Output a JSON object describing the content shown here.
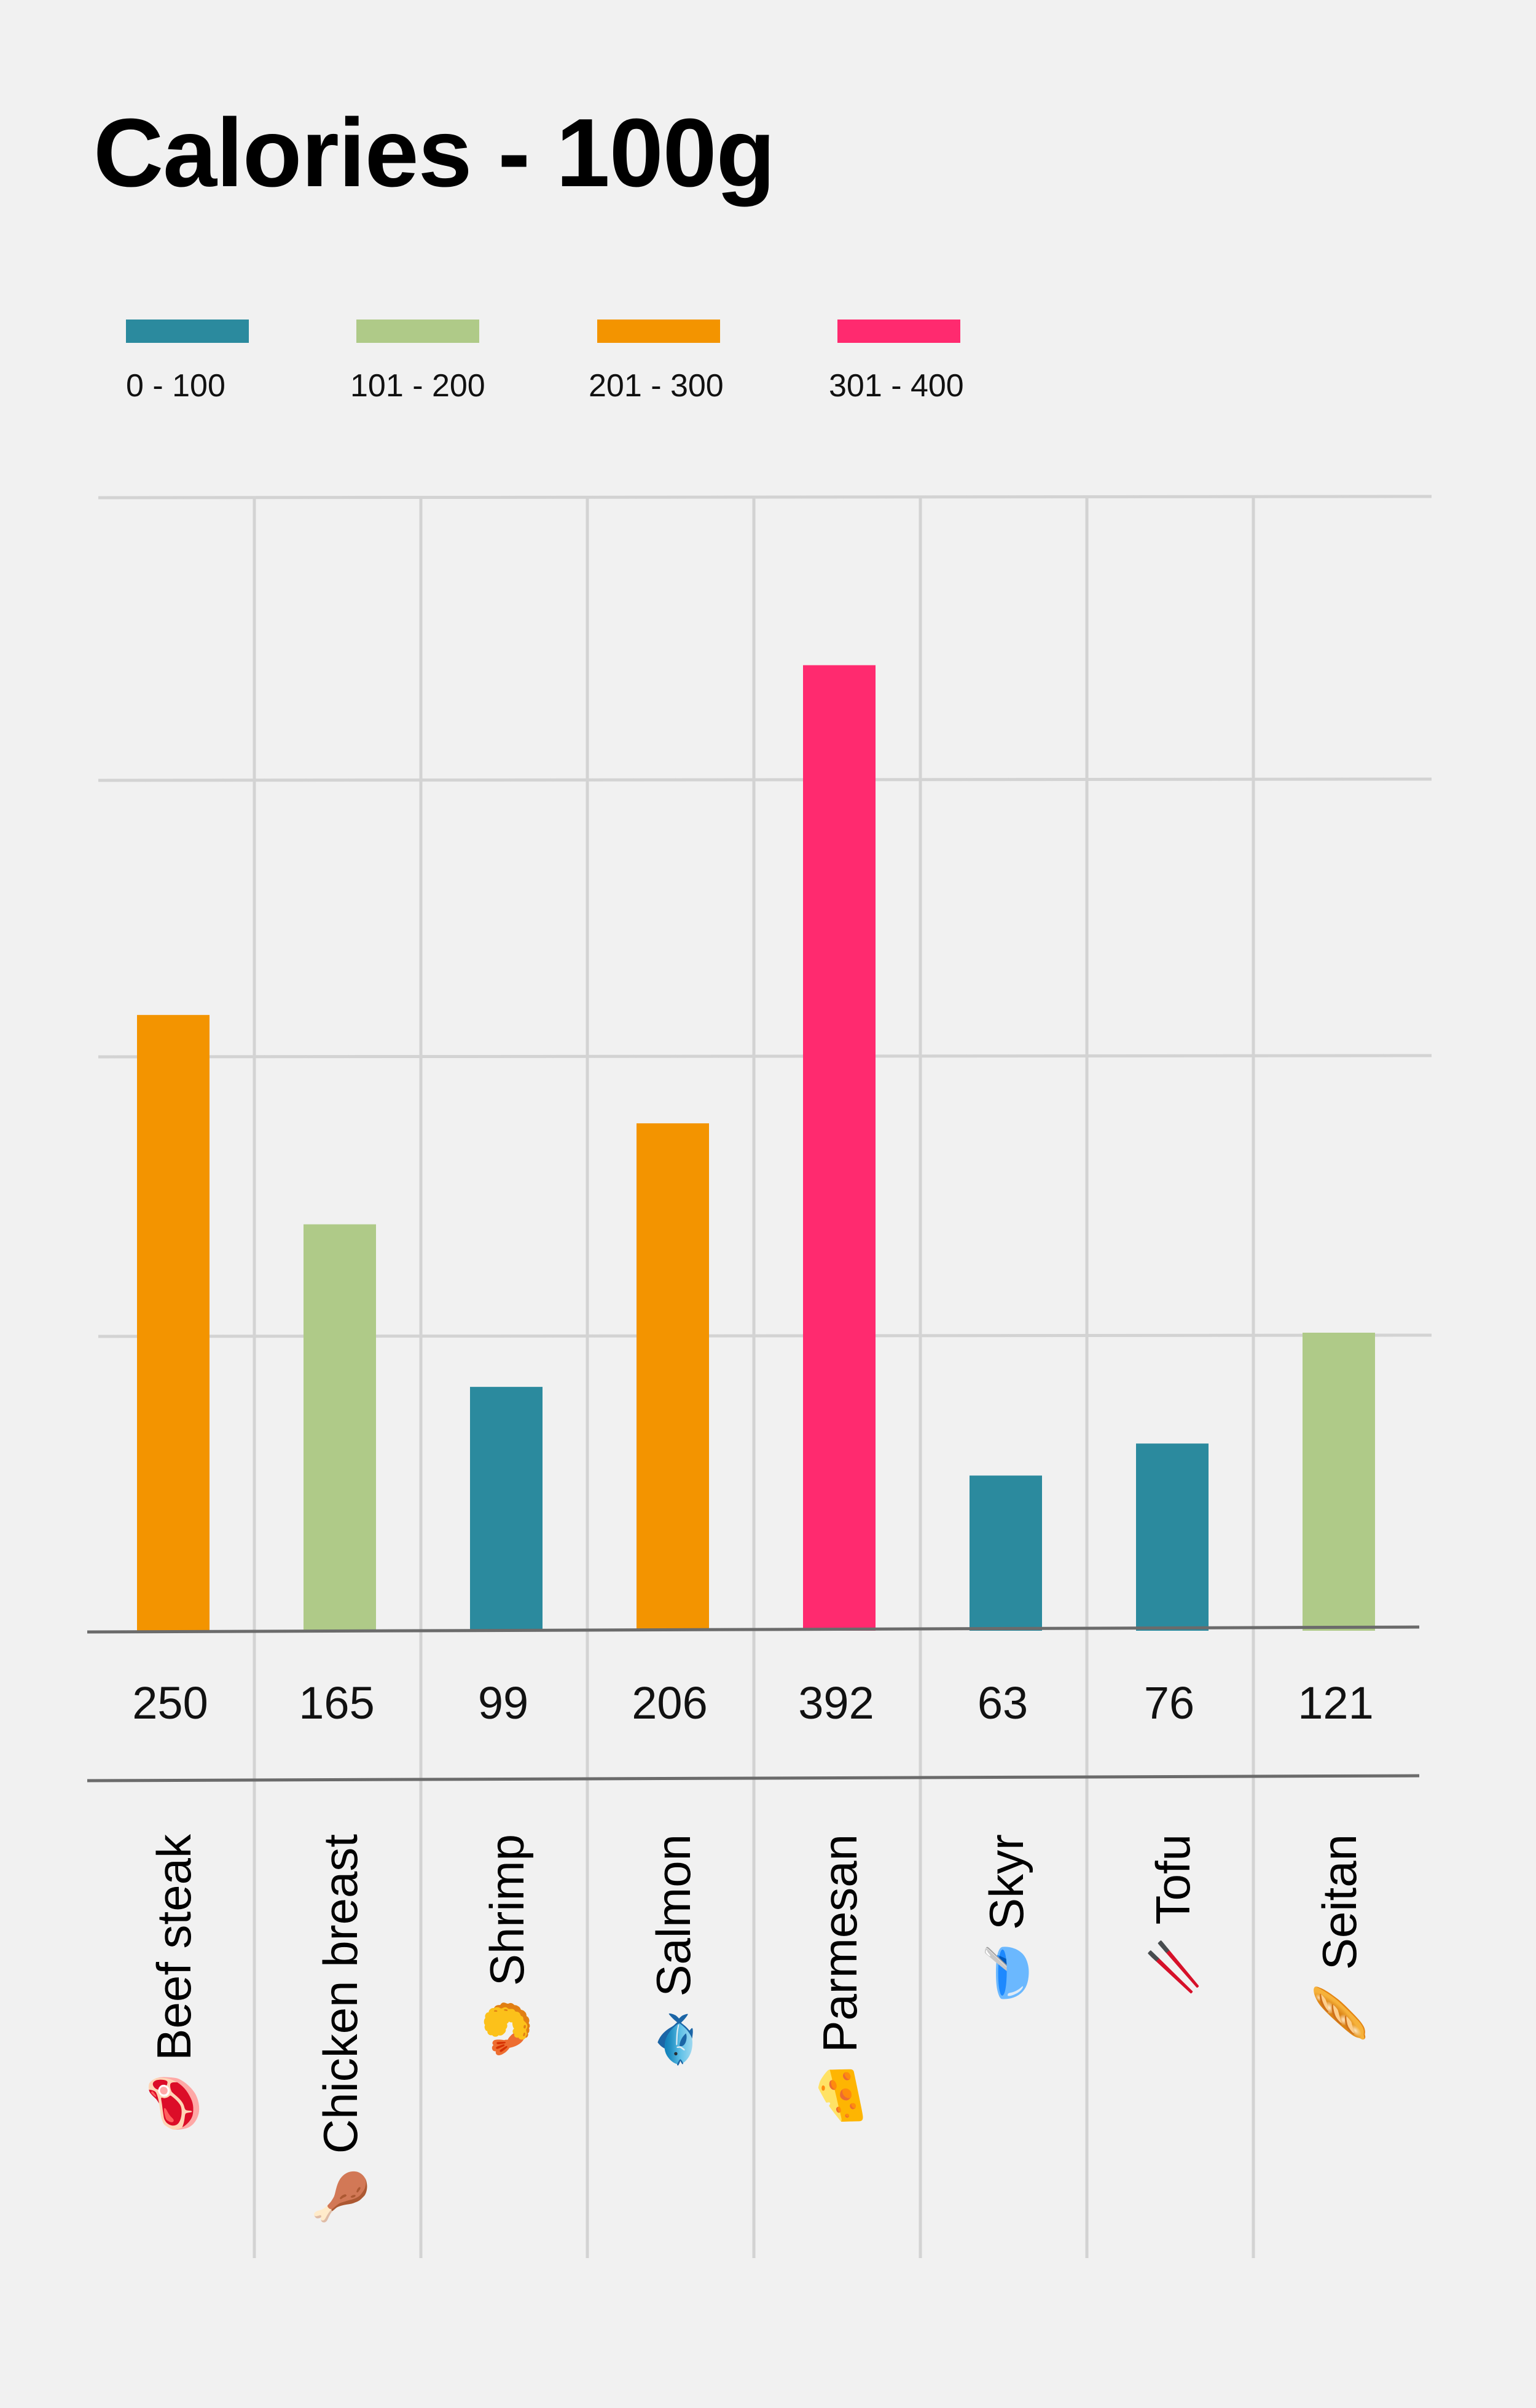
{
  "title": "Calories - 100g",
  "legend": [
    {
      "label": "0 - 100",
      "color": "#2b8a9e"
    },
    {
      "label": "101 - 200",
      "color": "#afca88"
    },
    {
      "label": "201 - 300",
      "color": "#f39400"
    },
    {
      "label": "301 - 400",
      "color": "#ff2a6f"
    }
  ],
  "chart_data": {
    "type": "bar",
    "title": "Calories - 100g",
    "categories": [
      "🥩 Beef steak",
      "🍗 Chicken breast",
      "🍤 Shrimp",
      "🐟 Salmon",
      "🧀 Parmesan",
      "🥣 Skyr",
      "🥢 Tofu",
      "🥖 Seitan"
    ],
    "values": [
      250,
      165,
      99,
      206,
      392,
      63,
      76,
      121
    ],
    "colors": [
      "#f39400",
      "#afca88",
      "#2b8a9e",
      "#f39400",
      "#ff2a6f",
      "#2b8a9e",
      "#2b8a9e",
      "#afca88"
    ],
    "ylim": [
      0,
      460
    ],
    "grid": true,
    "legend_position": "top-left",
    "xlabel": "",
    "ylabel": ""
  }
}
